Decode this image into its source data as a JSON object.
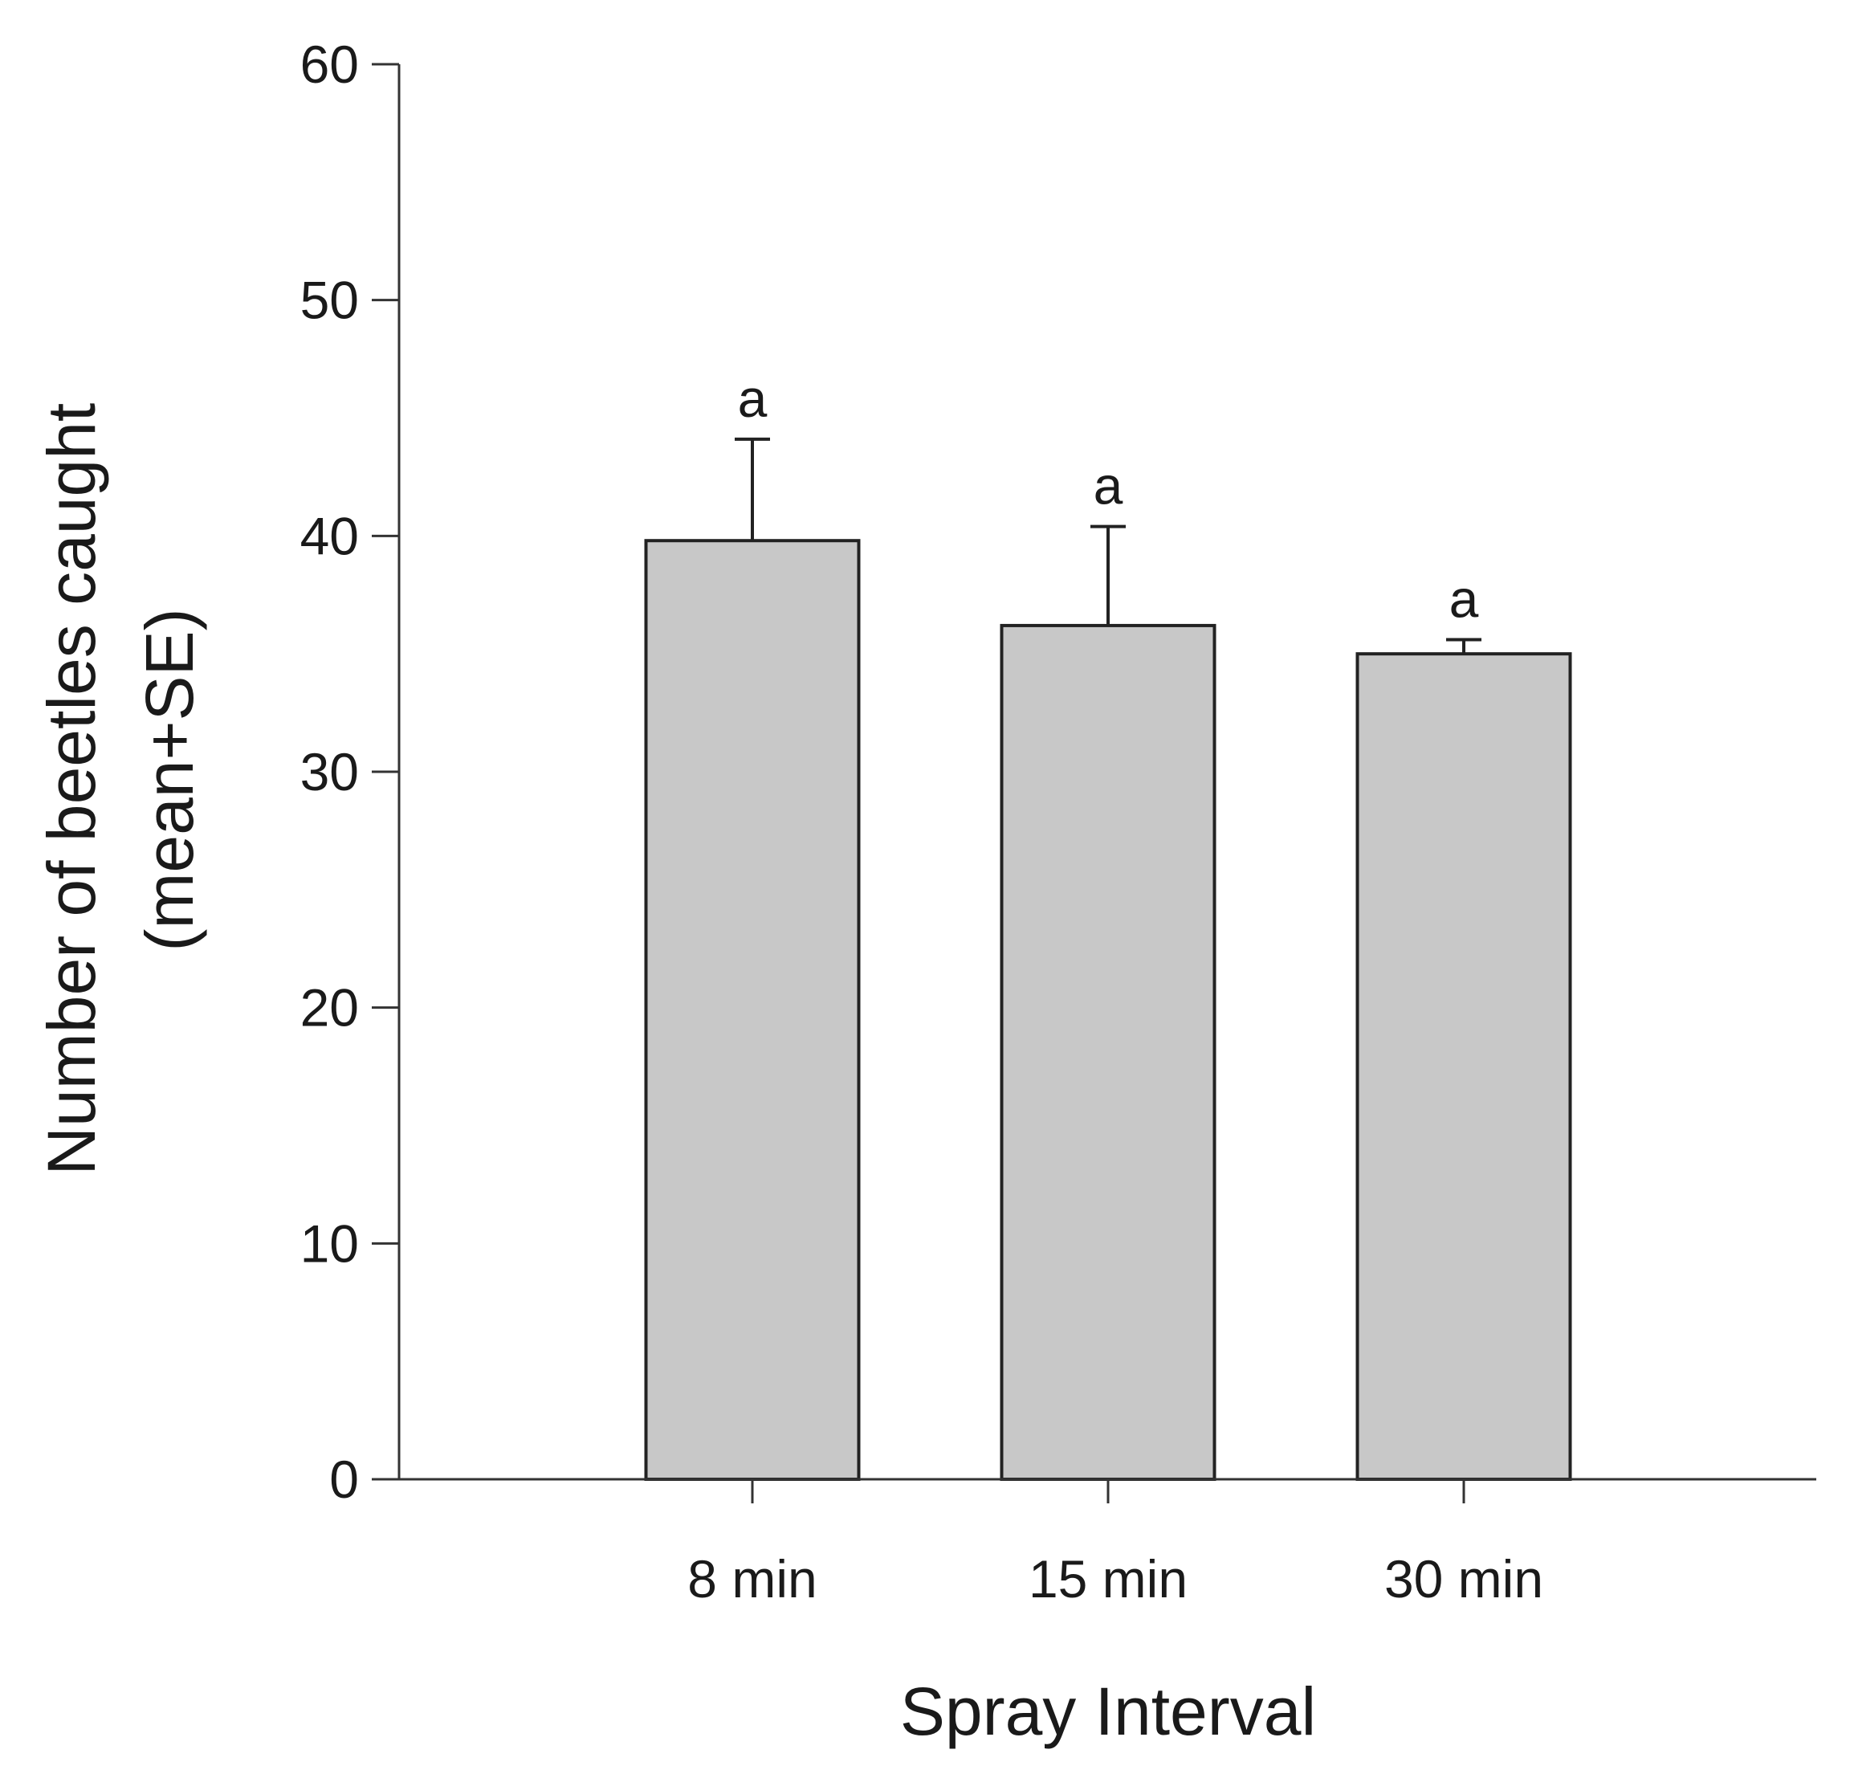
{
  "chart_data": {
    "type": "bar",
    "title": "",
    "xlabel": "Spray Interval",
    "ylabel_lines": [
      "Number of beetles caught",
      "(mean+SE)"
    ],
    "categories": [
      "8 min",
      "15 min",
      "30 min"
    ],
    "values": [
      39.8,
      36.2,
      35.0
    ],
    "errors": [
      4.3,
      4.2,
      0.6
    ],
    "annotations": [
      "a",
      "a",
      "a"
    ],
    "ylim": [
      0,
      60
    ],
    "yticks": [
      0,
      10,
      20,
      30,
      40,
      50,
      60
    ],
    "grid": false,
    "legend": "none",
    "colors": {
      "bar_fill": "#c8c8c8",
      "bar_stroke": "#222222",
      "axis": "#333333"
    }
  }
}
